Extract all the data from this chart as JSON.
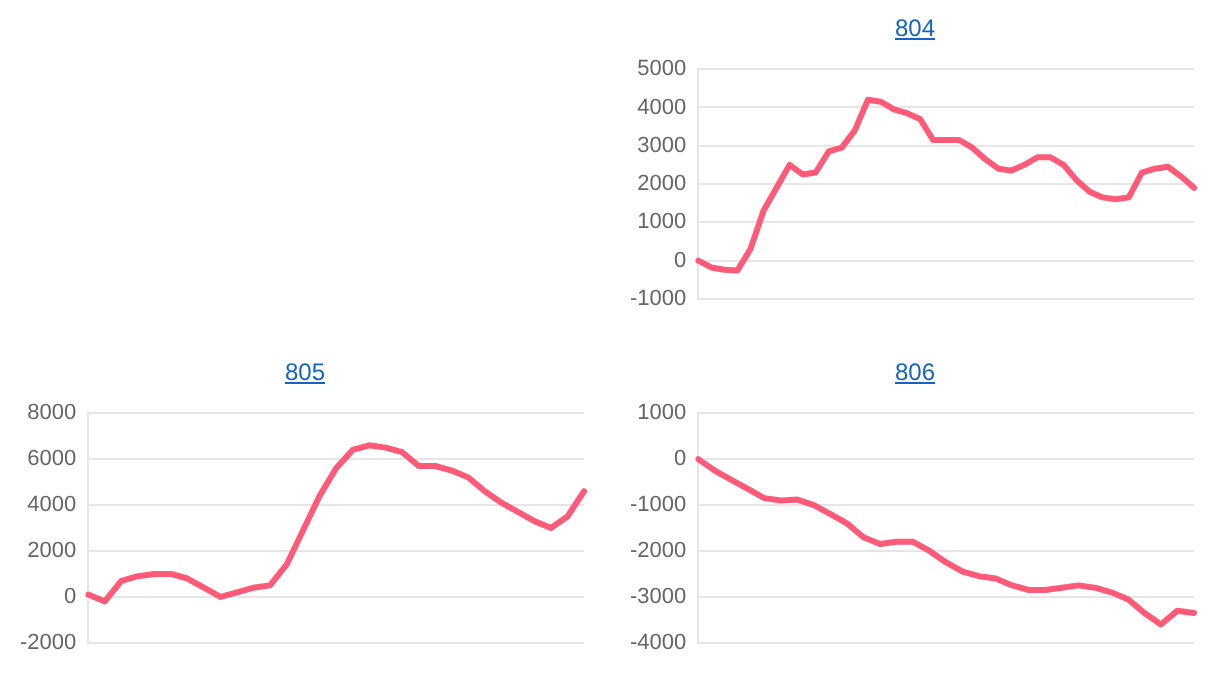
{
  "chart_data": [
    {
      "type": "line",
      "title": "804",
      "categories": [
        null,
        null,
        null,
        null,
        null,
        null,
        null,
        null,
        null,
        null,
        null,
        null,
        null,
        null,
        null,
        null,
        null,
        null,
        null,
        null,
        null,
        null,
        null,
        null,
        null,
        null,
        null,
        null,
        null,
        null,
        null,
        null,
        null,
        null,
        null,
        null,
        null,
        null,
        null
      ],
      "series": [
        {
          "color": "#ff5a78",
          "values": [
            0,
            -180,
            -240,
            -260,
            300,
            1300,
            1900,
            2500,
            2250,
            2300,
            2850,
            2950,
            3400,
            4200,
            4150,
            3950,
            3850,
            3700,
            3150,
            3150,
            3150,
            2950,
            2650,
            2400,
            2350,
            2500,
            2700,
            2700,
            2500,
            2100,
            1800,
            1650,
            1600,
            1650,
            2300,
            2400,
            2450,
            2200,
            1900
          ]
        }
      ],
      "ylim": [
        -1000,
        5000
      ],
      "yticks": [
        -1000,
        0,
        1000,
        2000,
        3000,
        4000,
        5000
      ],
      "grid": "y",
      "tick_labels": "y",
      "marker": "none",
      "legend": false
    },
    {
      "type": "line",
      "title": "805",
      "categories": [
        null,
        null,
        null,
        null,
        null,
        null,
        null,
        null,
        null,
        null,
        null,
        null,
        null,
        null,
        null,
        null,
        null,
        null,
        null,
        null,
        null,
        null,
        null,
        null,
        null,
        null,
        null,
        null,
        null,
        null,
        null
      ],
      "series": [
        {
          "color": "#ff5a78",
          "values": [
            100,
            -200,
            700,
            900,
            1000,
            1000,
            800,
            400,
            0,
            200,
            400,
            500,
            1400,
            2900,
            4400,
            5600,
            6400,
            6600,
            6500,
            6300,
            5700,
            5700,
            5500,
            5200,
            4600,
            4100,
            3700,
            3300,
            3000,
            3500,
            4600
          ]
        }
      ],
      "ylim": [
        -2000,
        8000
      ],
      "yticks": [
        -2000,
        0,
        2000,
        4000,
        6000,
        8000
      ],
      "grid": "y",
      "tick_labels": "y",
      "marker": "none",
      "legend": false
    },
    {
      "type": "line",
      "title": "806",
      "categories": [
        null,
        null,
        null,
        null,
        null,
        null,
        null,
        null,
        null,
        null,
        null,
        null,
        null,
        null,
        null,
        null,
        null,
        null,
        null,
        null,
        null,
        null,
        null,
        null,
        null,
        null,
        null,
        null,
        null,
        null,
        null
      ],
      "series": [
        {
          "color": "#ff5a78",
          "values": [
            0,
            -250,
            -450,
            -650,
            -850,
            -900,
            -880,
            -1000,
            -1200,
            -1400,
            -1700,
            -1850,
            -1800,
            -1800,
            -2000,
            -2250,
            -2450,
            -2550,
            -2600,
            -2750,
            -2850,
            -2850,
            -2800,
            -2750,
            -2800,
            -2900,
            -3050,
            -3350,
            -3600,
            -3300,
            -3350
          ]
        }
      ],
      "ylim": [
        -4000,
        1000
      ],
      "yticks": [
        -4000,
        -3000,
        -2000,
        -1000,
        0,
        1000
      ],
      "grid": "y",
      "tick_labels": "y",
      "marker": "none",
      "legend": false
    }
  ]
}
